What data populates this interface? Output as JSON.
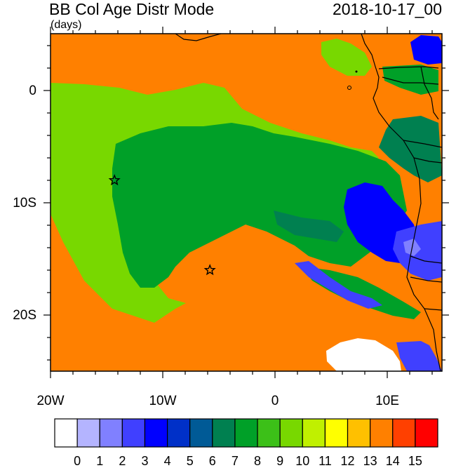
{
  "title": "BB Col Age Distr Mode",
  "units": "(days)",
  "date": "2018-10-17_00",
  "y_labels": [
    "0",
    "10S",
    "20S"
  ],
  "x_labels": [
    "20W",
    "10W",
    "0",
    "10E"
  ],
  "colorbar": {
    "labels": [
      "0",
      "1",
      "2",
      "3",
      "4",
      "5",
      "6",
      "7",
      "8",
      "9",
      "10",
      "11",
      "12",
      "13",
      "14",
      "15"
    ],
    "colors": [
      "#ffffff",
      "#b4b4ff",
      "#8080ff",
      "#4040ff",
      "#0000ff",
      "#0030c8",
      "#005a96",
      "#008050",
      "#00a028",
      "#3cc018",
      "#78d800",
      "#c0f000",
      "#ffff00",
      "#ffc000",
      "#ff8000",
      "#ff4000",
      "#ff0000"
    ]
  },
  "markers": [
    {
      "name": "star-marker-west",
      "lon": -14.3,
      "lat": -8.0
    },
    {
      "name": "star-marker-south",
      "lon": -5.8,
      "lat": -16.0
    }
  ]
}
